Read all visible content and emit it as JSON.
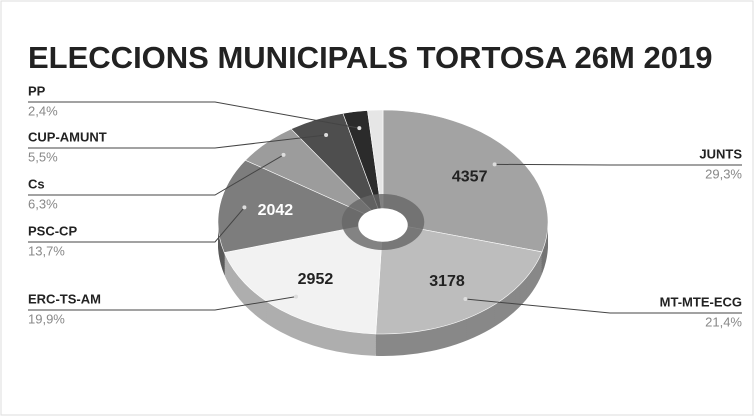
{
  "chart_data": {
    "type": "pie",
    "title": "ELECCIONS MUNICIPALS TORTOSA 26M 2019",
    "categories": [
      "JUNTS",
      "MT-MTE-ECG",
      "ERC-TS-AM",
      "PSC-CP",
      "Cs",
      "CUP-AMUNT",
      "PP",
      null
    ],
    "values": [
      29.3,
      21.4,
      19.9,
      13.7,
      6.3,
      5.5,
      2.4,
      1.5
    ],
    "value_labels": [
      "29,3%",
      "21,4%",
      "19,9%",
      "13,7%",
      "6,3%",
      "5,5%",
      "2,4%",
      null
    ],
    "counts": [
      4357,
      3178,
      2952,
      2042,
      null,
      null,
      null,
      null
    ],
    "colors": [
      "#a3a3a3",
      "#bdbdbd",
      "#f2f2f2",
      "#7d7d7d",
      "#9c9c9c",
      "#4e4e4e",
      "#2b2b2b",
      "#e6e6e6"
    ]
  }
}
